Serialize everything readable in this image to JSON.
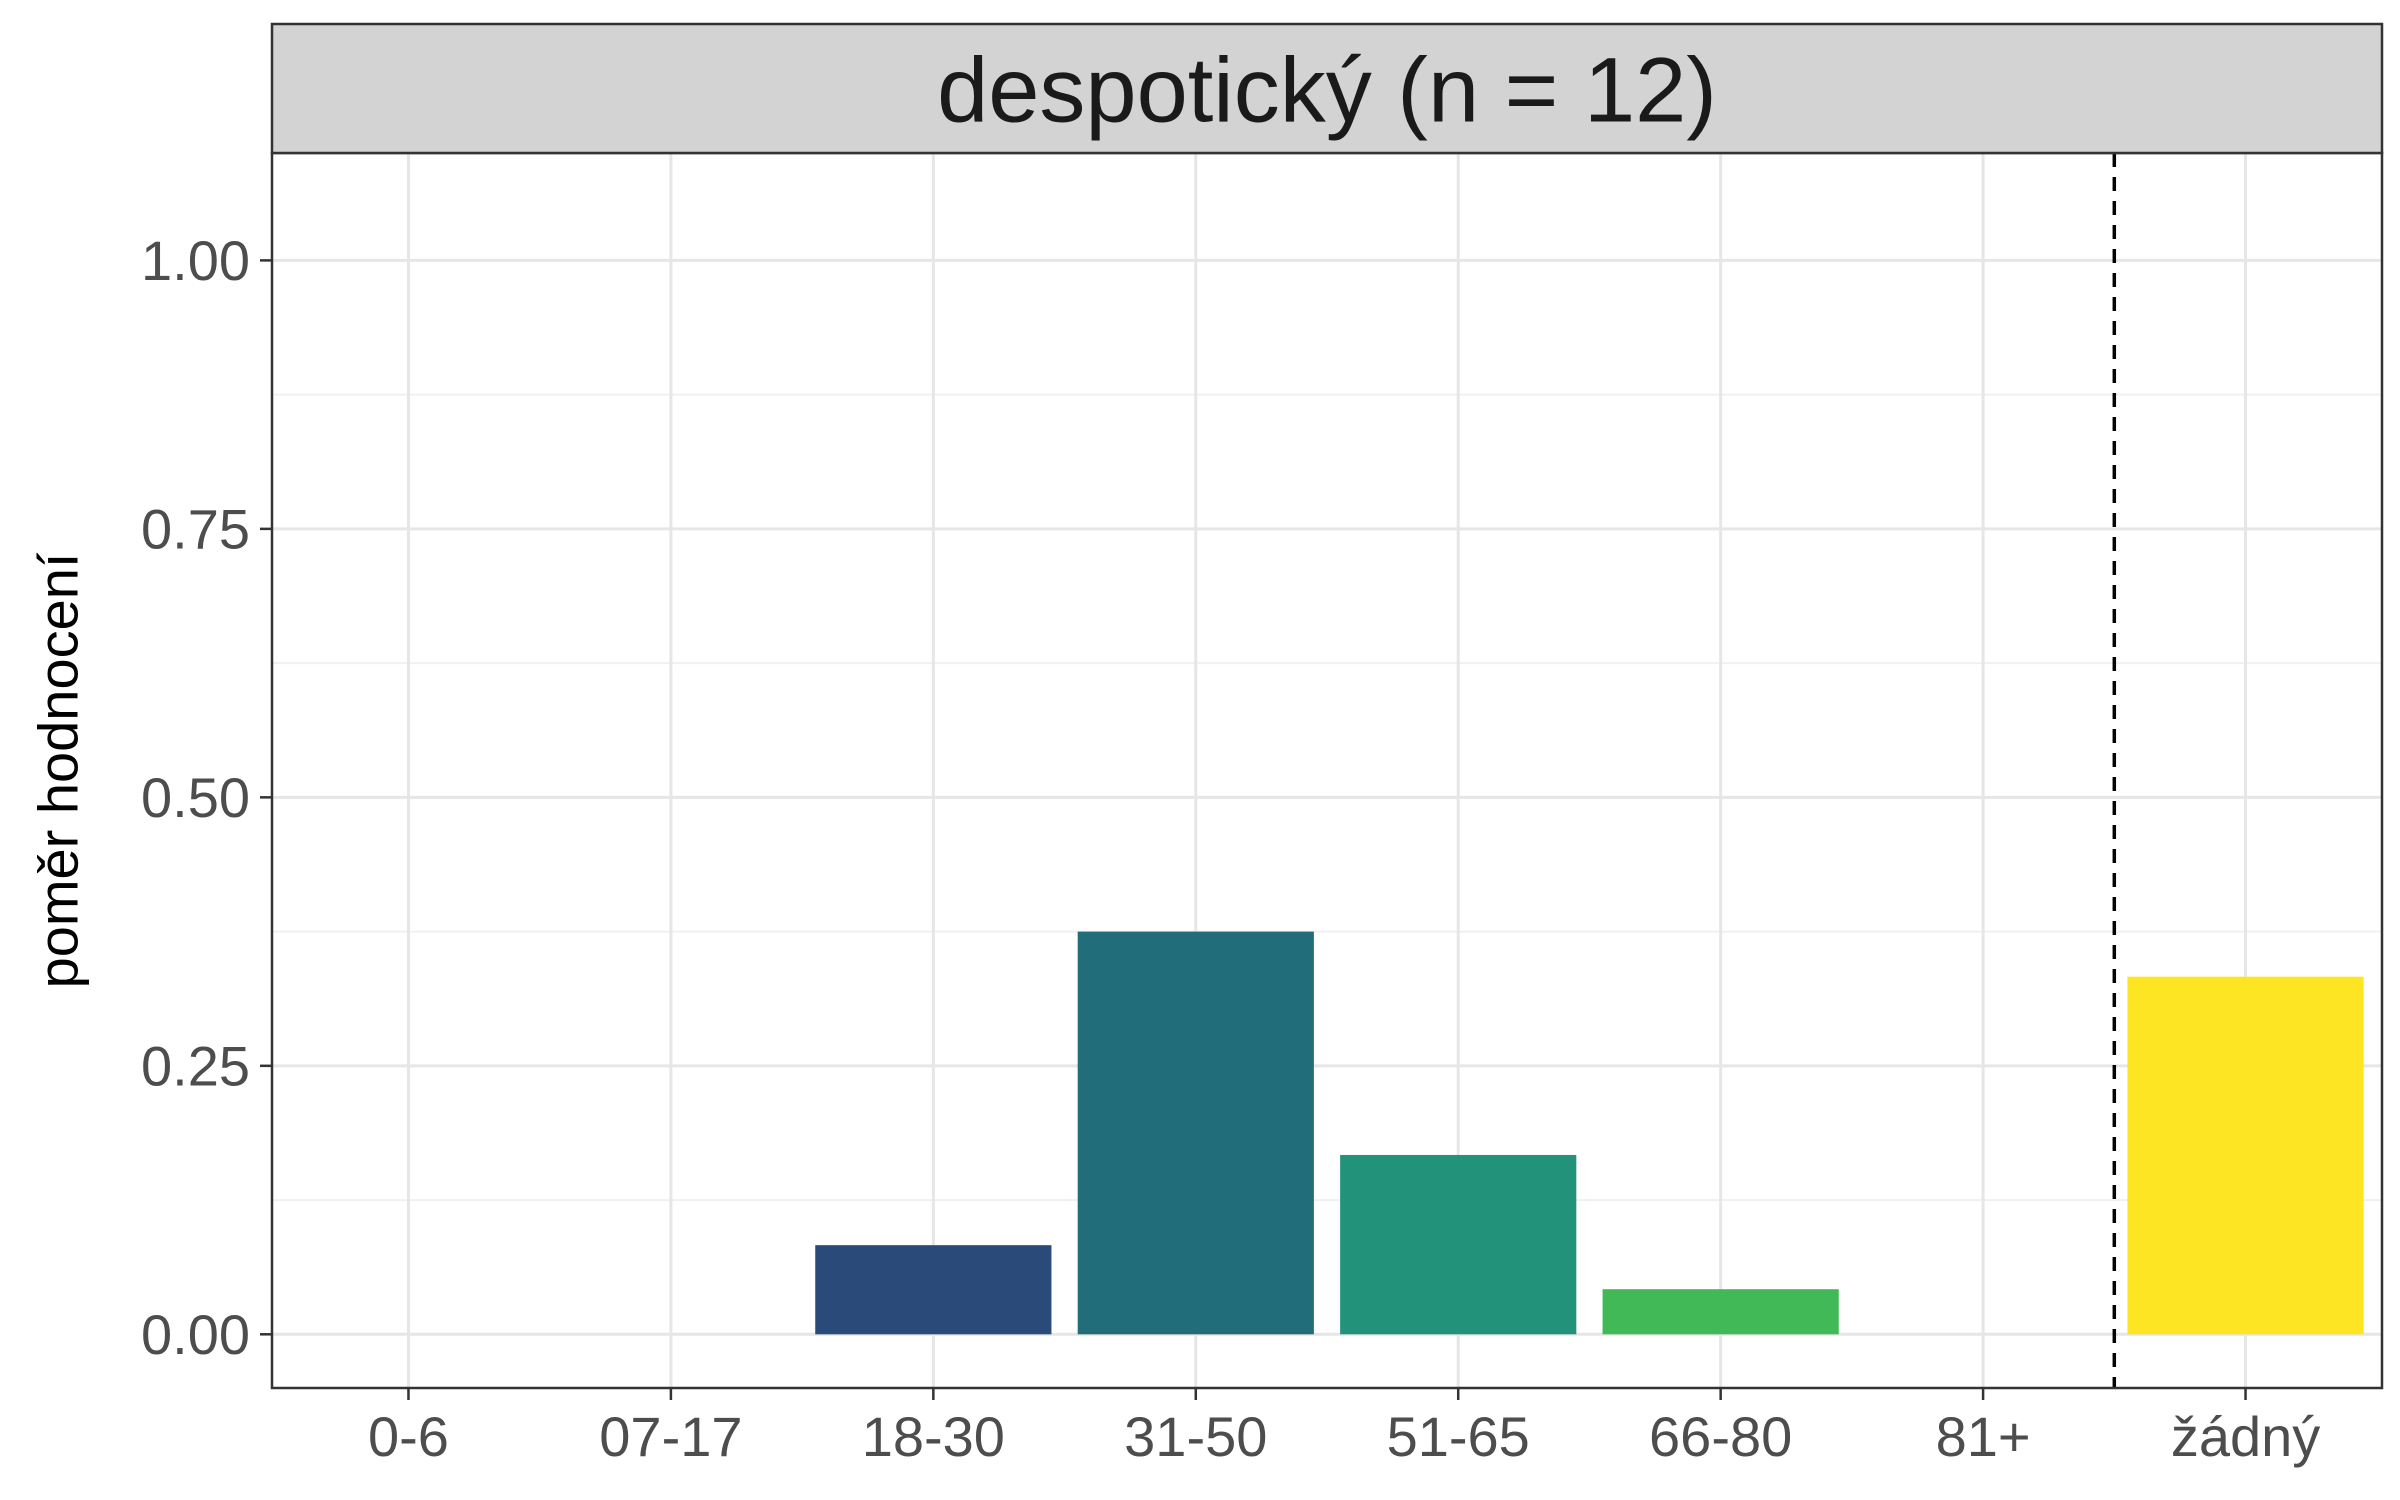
{
  "chart_data": {
    "type": "bar",
    "title": "despotický (n = 12)",
    "xlabel": "",
    "ylabel": "poměr hodnocení",
    "categories": [
      "0-6",
      "07-17",
      "18-30",
      "31-50",
      "51-65",
      "66-80",
      "81+",
      "žádný"
    ],
    "values": [
      0,
      0,
      0.083,
      0.375,
      0.167,
      0.042,
      0,
      0.333
    ],
    "colors": [
      "#440154",
      "#46337e",
      "#2a4a7a",
      "#216e7a",
      "#22937a",
      "#42b957",
      "#8fd744",
      "#fde523"
    ],
    "ylim": [
      -0.05,
      1.1
    ],
    "yticks": [
      "0.00",
      "0.25",
      "0.50",
      "0.75",
      "1.00"
    ],
    "ytick_values": [
      0,
      0.25,
      0.5,
      0.75,
      1.0
    ],
    "grid": true,
    "vline_after": "81+",
    "vline_style": "dashed"
  }
}
